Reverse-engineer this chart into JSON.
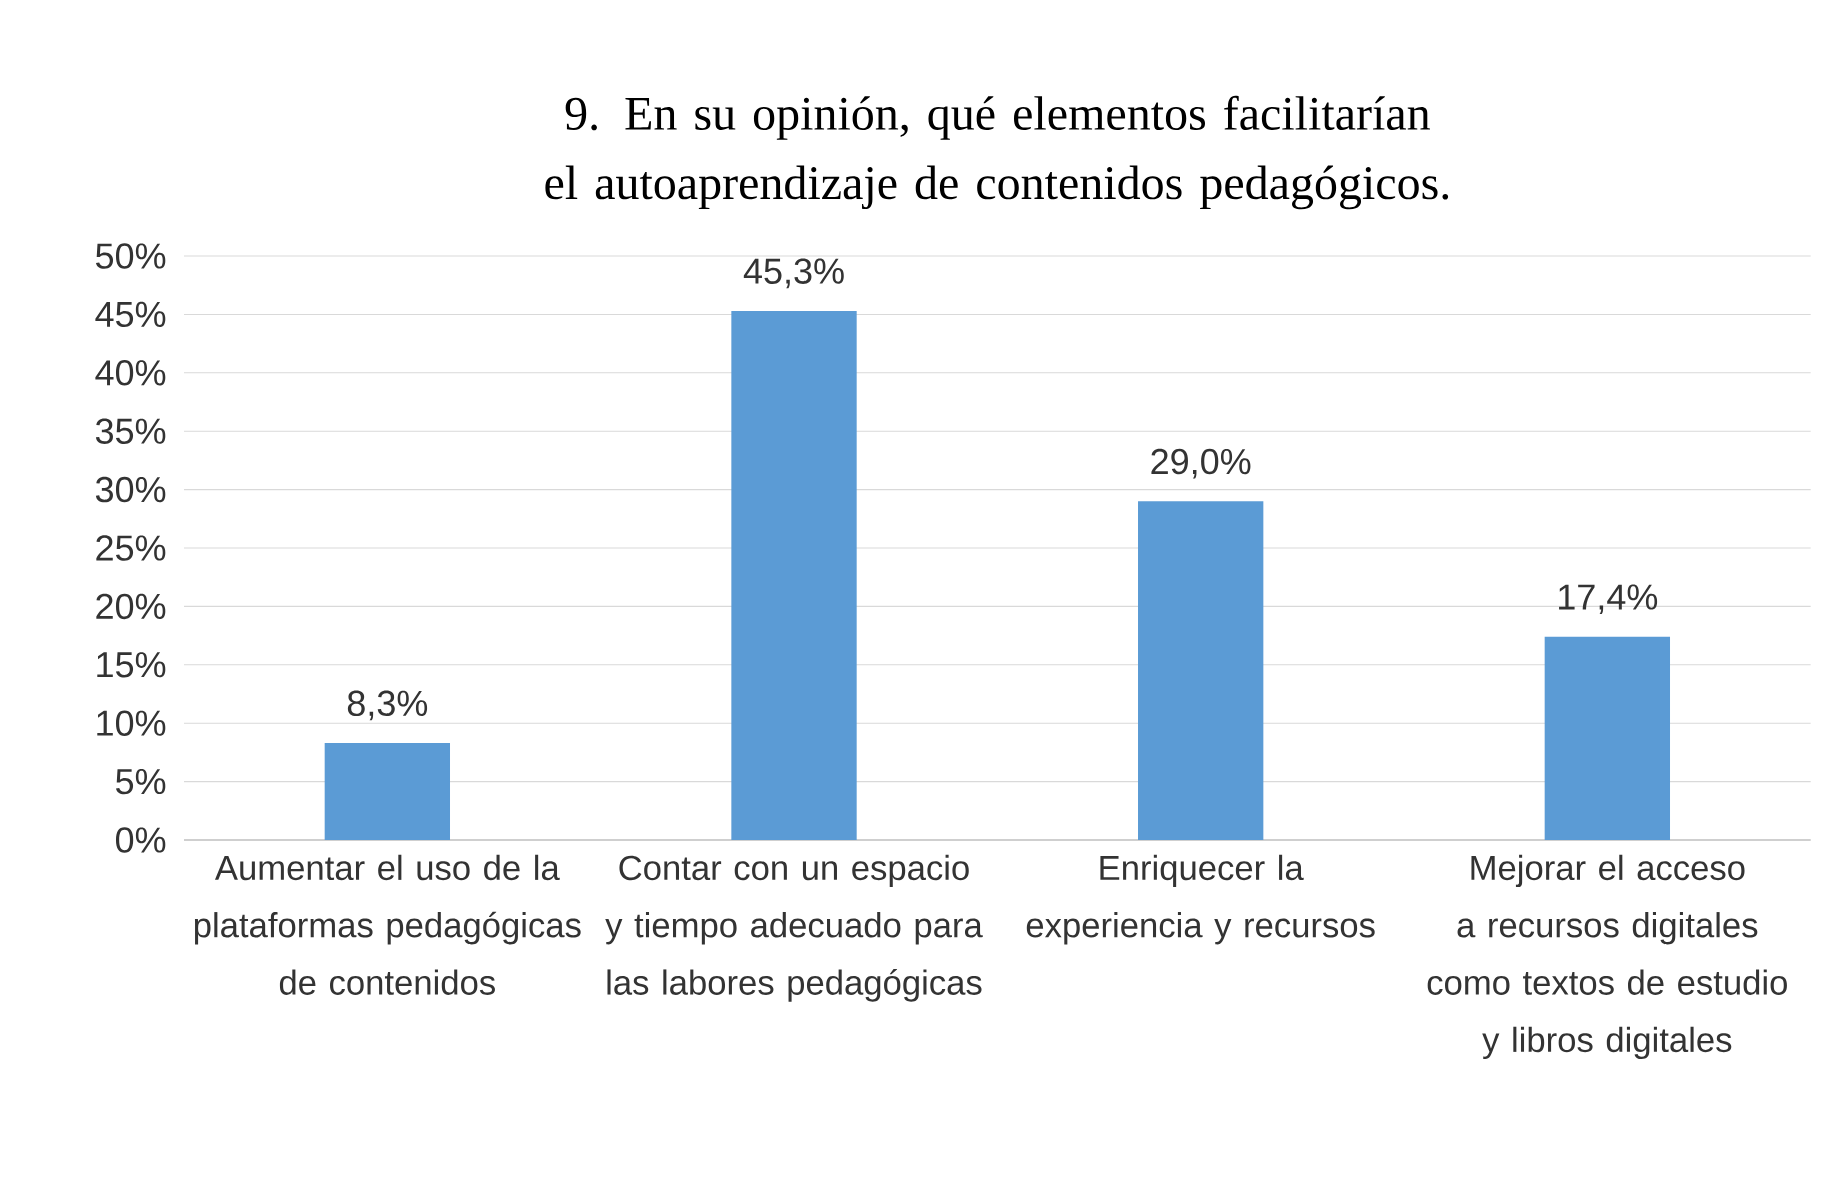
{
  "chart_data": {
    "type": "bar",
    "title": "9. En su opinión, qué elementos facilitarían el autoaprendizaje de contenidos pedagógicos.",
    "categories": [
      "Aumentar el uso de la plataformas pedagógicas de contenidos",
      "Contar con un espacio y tiempo adecuado para las labores pedagógicas",
      "Enriquecer la experiencia y recursos",
      "Mejorar el acceso a recursos digitales como textos de estudio y libros digitales"
    ],
    "values": [
      8.3,
      45.3,
      29.0,
      17.4
    ],
    "value_labels": [
      "8,3%",
      "45,3%",
      "29,0%",
      "17,4%"
    ],
    "color": "#5b9bd5",
    "ylim": [
      0,
      50
    ],
    "yticks": [
      {
        "value": 0,
        "label": "0%"
      },
      {
        "value": 5,
        "label": "5%"
      },
      {
        "value": 10,
        "label": "10%"
      },
      {
        "value": 15,
        "label": "15%"
      },
      {
        "value": 20,
        "label": "20%"
      },
      {
        "value": 25,
        "label": "25%"
      },
      {
        "value": 30,
        "label": "30%"
      },
      {
        "value": 35,
        "label": "35%"
      },
      {
        "value": 40,
        "label": "40%"
      },
      {
        "value": 45,
        "label": "45%"
      },
      {
        "value": 50,
        "label": "50%"
      }
    ],
    "grid": "y"
  }
}
